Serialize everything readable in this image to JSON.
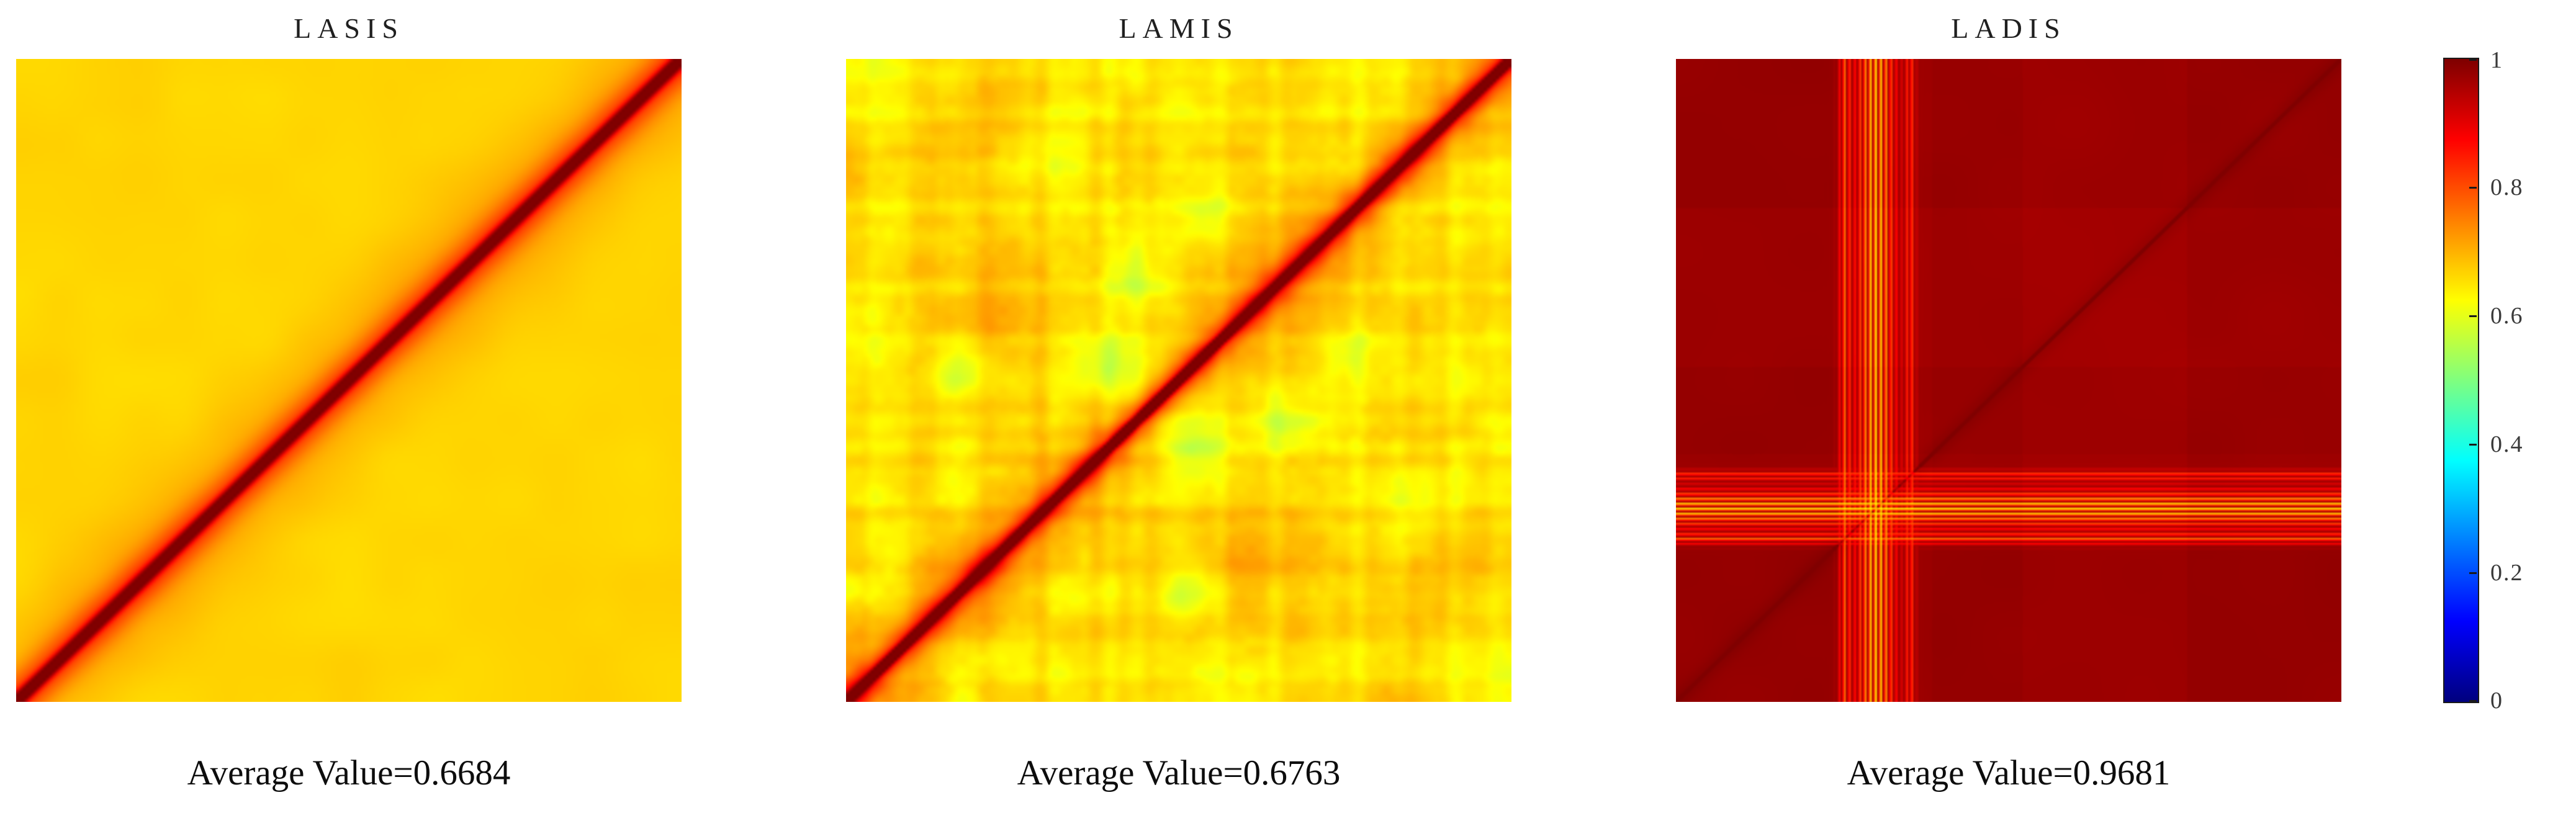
{
  "figure": {
    "background_color": "#ffffff",
    "panels": [
      {
        "title": "LASIS",
        "caption": "Average Value=0.6684"
      },
      {
        "title": "LAMIS",
        "caption": "Average Value=0.6763"
      },
      {
        "title": "LADIS",
        "caption": "Average Value=0.9681"
      }
    ],
    "colorbar": {
      "colormap": "jet",
      "min": 0,
      "max": 1,
      "ticks": [
        "1",
        "0.8",
        "0.6",
        "0.4",
        "0.2",
        "0"
      ]
    }
  },
  "chart_data": [
    {
      "type": "heatmap",
      "title": "LASIS",
      "caption": "Average Value=0.6684",
      "average_value": 0.6684,
      "colormap": "jet",
      "value_range": [
        0,
        1
      ],
      "diagonal_orientation": "bottom-left to top-right",
      "description": "Smooth self-similarity matrix: nearly uniform yellow field (~0.67) with a dark-red unity diagonal and an orange halo that fades with distance from the diagonal.",
      "gen": {
        "n": 220,
        "seed": 7,
        "base": 0.665,
        "diag": [
          {
            "amp": 0.4,
            "sigma": 0.012
          },
          {
            "amp": 0.13,
            "sigma": 0.045
          },
          {
            "amp": 0.05,
            "sigma": 0.13
          }
        ],
        "noise": [
          {
            "scale": 6,
            "amp": 0.01
          },
          {
            "scale": 16,
            "amp": 0.006
          }
        ]
      }
    },
    {
      "type": "heatmap",
      "title": "LAMIS",
      "caption": "Average Value=0.6763",
      "average_value": 0.6763,
      "colormap": "jet",
      "value_range": [
        0,
        1
      ],
      "diagonal_orientation": "bottom-left to top-right",
      "description": "Noisy self-similarity matrix: mottled yellow/orange field (~0.68) with scattered greenish low-similarity patches (~0.55), cross-hatched row/column streaks, and a dark-red unity diagonal with a wider red-orange halo.",
      "gen": {
        "n": 220,
        "seed": 13,
        "base": 0.662,
        "diag": [
          {
            "amp": 0.4,
            "sigma": 0.01
          },
          {
            "amp": 0.17,
            "sigma": 0.032
          },
          {
            "amp": 0.06,
            "sigma": 0.1
          }
        ],
        "noise": [
          {
            "scale": 5,
            "amp": 0.032
          },
          {
            "scale": 12,
            "amp": 0.028
          },
          {
            "scale": 28,
            "amp": 0.018
          },
          {
            "scale": 64,
            "amp": 0.01
          }
        ],
        "streaks": {
          "scale": 48,
          "amp": 0.018
        },
        "blobs": [
          {
            "x": 0.45,
            "y": 0.66,
            "r": 0.055,
            "a": -0.07
          },
          {
            "x": 0.17,
            "y": 0.52,
            "r": 0.045,
            "a": -0.06
          },
          {
            "x": 0.52,
            "y": 0.4,
            "r": 0.06,
            "a": -0.065
          },
          {
            "x": 0.76,
            "y": 0.55,
            "r": 0.04,
            "a": -0.055
          },
          {
            "x": 0.32,
            "y": 0.85,
            "r": 0.05,
            "a": -0.05
          }
        ]
      }
    },
    {
      "type": "heatmap",
      "title": "LADIS",
      "caption": "Average Value=0.9681",
      "average_value": 0.9681,
      "colormap": "jet",
      "value_range": [
        0,
        1
      ],
      "diagonal_orientation": "bottom-left to top-right",
      "description": "High-similarity matrix: nearly uniform dark-red field (~0.97) with subtle rectangular block shading, a faint darker unity diagonal, and a band of fine alternating yellow/red stripes (~0.63 dips) appearing as vertical lines near 1/3 of the width and matching horizontal lines in the lower half, crossing in a grid.",
      "gen": {
        "n": 384,
        "seed": 3,
        "base": 0.972,
        "diag": [
          {
            "amp": 0.05,
            "sigma": 0.003
          },
          {
            "amp": 0.012,
            "sigma": 0.02
          }
        ],
        "noise": [
          {
            "scale": 10,
            "amp": 0.004
          }
        ],
        "blocks": {
          "bounds": [
            0,
            0.26,
            0.385,
            0.52,
            0.77,
            1
          ],
          "offsets": [
            0.008,
            -0.006,
            0.004,
            -0.008,
            0.006
          ]
        },
        "stripes": {
          "period": 3,
          "cross_factor": 0.12,
          "envelopes": [
            {
              "c": 0.3,
              "s": 0.028,
              "a": 0.33
            },
            {
              "c": 0.253,
              "s": 0.009,
              "a": 0.2
            },
            {
              "c": 0.352,
              "s": 0.008,
              "a": 0.16
            }
          ]
        }
      }
    }
  ]
}
